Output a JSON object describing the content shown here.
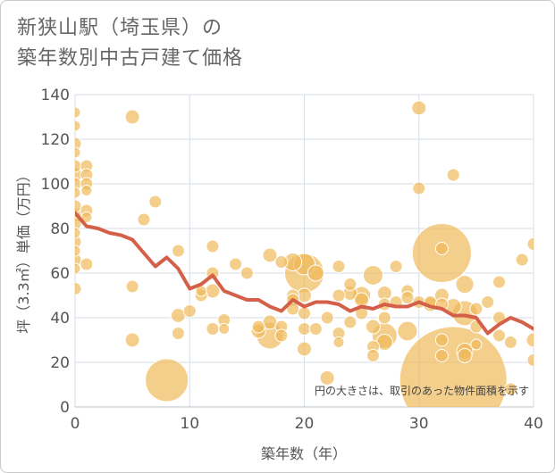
{
  "chart_data": {
    "type": "scatter",
    "title_lines": [
      "新狭山駅（埼玉県）の",
      "築年数別中古戸建て価格"
    ],
    "xlabel": "築年数（年）",
    "ylabel": "坪（3.3㎡）単価（万円）",
    "xlim": [
      0,
      40
    ],
    "ylim": [
      0,
      140
    ],
    "x_ticks": [
      0,
      10,
      20,
      30,
      40
    ],
    "y_ticks": [
      0,
      20,
      40,
      60,
      80,
      100,
      120,
      140
    ],
    "grid": true,
    "note": "円の大きさは、取引のあった物件面積を示す",
    "colors": {
      "bubble": "#f0b95a",
      "line": "#d4604a",
      "grid": "#d5dde6"
    },
    "points": [
      {
        "x": 0,
        "y": 132,
        "r": 6
      },
      {
        "x": 0,
        "y": 126,
        "r": 6
      },
      {
        "x": 0,
        "y": 118,
        "r": 7
      },
      {
        "x": 0,
        "y": 114,
        "r": 6
      },
      {
        "x": 0,
        "y": 108,
        "r": 7
      },
      {
        "x": 0,
        "y": 104,
        "r": 8
      },
      {
        "x": 0,
        "y": 100,
        "r": 7
      },
      {
        "x": 0,
        "y": 96,
        "r": 6
      },
      {
        "x": 0,
        "y": 90,
        "r": 7
      },
      {
        "x": 0,
        "y": 86,
        "r": 8
      },
      {
        "x": 0,
        "y": 82,
        "r": 7
      },
      {
        "x": 0,
        "y": 78,
        "r": 6
      },
      {
        "x": 0,
        "y": 74,
        "r": 7
      },
      {
        "x": 0,
        "y": 70,
        "r": 6
      },
      {
        "x": 0,
        "y": 66,
        "r": 7
      },
      {
        "x": 0,
        "y": 62,
        "r": 6
      },
      {
        "x": 0,
        "y": 53,
        "r": 7
      },
      {
        "x": 1,
        "y": 108,
        "r": 7
      },
      {
        "x": 1,
        "y": 104,
        "r": 7
      },
      {
        "x": 1,
        "y": 100,
        "r": 7
      },
      {
        "x": 1,
        "y": 97,
        "r": 6
      },
      {
        "x": 1,
        "y": 88,
        "r": 7
      },
      {
        "x": 1,
        "y": 85,
        "r": 6
      },
      {
        "x": 1,
        "y": 64,
        "r": 7
      },
      {
        "x": 5,
        "y": 130,
        "r": 8
      },
      {
        "x": 5,
        "y": 54,
        "r": 7
      },
      {
        "x": 5,
        "y": 30,
        "r": 8
      },
      {
        "x": 6,
        "y": 84,
        "r": 7
      },
      {
        "x": 7,
        "y": 92,
        "r": 7
      },
      {
        "x": 8,
        "y": 12,
        "r": 24
      },
      {
        "x": 9,
        "y": 70,
        "r": 7
      },
      {
        "x": 9,
        "y": 41,
        "r": 8
      },
      {
        "x": 9,
        "y": 33,
        "r": 7
      },
      {
        "x": 10,
        "y": 43,
        "r": 7
      },
      {
        "x": 11,
        "y": 50,
        "r": 7
      },
      {
        "x": 11,
        "y": 52,
        "r": 6
      },
      {
        "x": 12,
        "y": 72,
        "r": 7
      },
      {
        "x": 12,
        "y": 60,
        "r": 7
      },
      {
        "x": 12,
        "y": 52,
        "r": 8
      },
      {
        "x": 12,
        "y": 35,
        "r": 7
      },
      {
        "x": 13,
        "y": 39,
        "r": 7
      },
      {
        "x": 13,
        "y": 35,
        "r": 6
      },
      {
        "x": 14,
        "y": 64,
        "r": 7
      },
      {
        "x": 15,
        "y": 60,
        "r": 7
      },
      {
        "x": 16,
        "y": 36,
        "r": 7
      },
      {
        "x": 16,
        "y": 34,
        "r": 8
      },
      {
        "x": 17,
        "y": 68,
        "r": 8
      },
      {
        "x": 17,
        "y": 38,
        "r": 8
      },
      {
        "x": 17,
        "y": 32,
        "r": 15
      },
      {
        "x": 18,
        "y": 65,
        "r": 7
      },
      {
        "x": 18,
        "y": 36,
        "r": 7
      },
      {
        "x": 18,
        "y": 32,
        "r": 7
      },
      {
        "x": 19,
        "y": 65,
        "r": 10
      },
      {
        "x": 19,
        "y": 50,
        "r": 7
      },
      {
        "x": 19,
        "y": 48,
        "r": 7
      },
      {
        "x": 19,
        "y": 44,
        "r": 7
      },
      {
        "x": 20,
        "y": 64,
        "r": 12
      },
      {
        "x": 20,
        "y": 60,
        "r": 22
      },
      {
        "x": 20,
        "y": 50,
        "r": 8
      },
      {
        "x": 20,
        "y": 42,
        "r": 7
      },
      {
        "x": 20,
        "y": 35,
        "r": 7
      },
      {
        "x": 20,
        "y": 26,
        "r": 8
      },
      {
        "x": 21,
        "y": 60,
        "r": 9
      },
      {
        "x": 21,
        "y": 35,
        "r": 7
      },
      {
        "x": 22,
        "y": 40,
        "r": 7
      },
      {
        "x": 22,
        "y": 13,
        "r": 8
      },
      {
        "x": 23,
        "y": 63,
        "r": 7
      },
      {
        "x": 23,
        "y": 50,
        "r": 7
      },
      {
        "x": 23,
        "y": 33,
        "r": 7
      },
      {
        "x": 23,
        "y": 29,
        "r": 6
      },
      {
        "x": 24,
        "y": 55,
        "r": 7
      },
      {
        "x": 24,
        "y": 51,
        "r": 8
      },
      {
        "x": 24,
        "y": 38,
        "r": 7
      },
      {
        "x": 25,
        "y": 50,
        "r": 10
      },
      {
        "x": 25,
        "y": 48,
        "r": 8
      },
      {
        "x": 25,
        "y": 42,
        "r": 7
      },
      {
        "x": 26,
        "y": 59,
        "r": 11
      },
      {
        "x": 26,
        "y": 36,
        "r": 8
      },
      {
        "x": 26,
        "y": 27,
        "r": 7
      },
      {
        "x": 26,
        "y": 23,
        "r": 7
      },
      {
        "x": 27,
        "y": 51,
        "r": 8
      },
      {
        "x": 27,
        "y": 46,
        "r": 7
      },
      {
        "x": 27,
        "y": 40,
        "r": 7
      },
      {
        "x": 27,
        "y": 32,
        "r": 14
      },
      {
        "x": 27,
        "y": 29,
        "r": 9
      },
      {
        "x": 28,
        "y": 63,
        "r": 7
      },
      {
        "x": 28,
        "y": 47,
        "r": 7
      },
      {
        "x": 29,
        "y": 52,
        "r": 7
      },
      {
        "x": 29,
        "y": 49,
        "r": 7
      },
      {
        "x": 29,
        "y": 34,
        "r": 11
      },
      {
        "x": 30,
        "y": 134,
        "r": 8
      },
      {
        "x": 30,
        "y": 98,
        "r": 7
      },
      {
        "x": 30,
        "y": 47,
        "r": 7
      },
      {
        "x": 31,
        "y": 47,
        "r": 7
      },
      {
        "x": 31,
        "y": 46,
        "r": 8
      },
      {
        "x": 32,
        "y": 69,
        "r": 33
      },
      {
        "x": 32,
        "y": 71,
        "r": 7
      },
      {
        "x": 32,
        "y": 50,
        "r": 8
      },
      {
        "x": 32,
        "y": 46,
        "r": 7
      },
      {
        "x": 32,
        "y": 30,
        "r": 7
      },
      {
        "x": 32,
        "y": 23,
        "r": 7
      },
      {
        "x": 33,
        "y": 104,
        "r": 7
      },
      {
        "x": 33,
        "y": 45,
        "r": 9
      },
      {
        "x": 33,
        "y": 12,
        "r": 60
      },
      {
        "x": 34,
        "y": 55,
        "r": 10
      },
      {
        "x": 34,
        "y": 42,
        "r": 14
      },
      {
        "x": 34,
        "y": 25,
        "r": 9
      },
      {
        "x": 34,
        "y": 23,
        "r": 8
      },
      {
        "x": 35,
        "y": 44,
        "r": 7
      },
      {
        "x": 35,
        "y": 36,
        "r": 7
      },
      {
        "x": 35,
        "y": 28,
        "r": 6
      },
      {
        "x": 36,
        "y": 47,
        "r": 7
      },
      {
        "x": 37,
        "y": 56,
        "r": 7
      },
      {
        "x": 37,
        "y": 40,
        "r": 7
      },
      {
        "x": 37,
        "y": 32,
        "r": 7
      },
      {
        "x": 38,
        "y": 29,
        "r": 7
      },
      {
        "x": 38,
        "y": 8,
        "r": 7
      },
      {
        "x": 39,
        "y": 66,
        "r": 7
      },
      {
        "x": 40,
        "y": 73,
        "r": 7
      },
      {
        "x": 40,
        "y": 30,
        "r": 8
      },
      {
        "x": 40,
        "y": 21,
        "r": 7
      }
    ],
    "trend_line": {
      "x": [
        0,
        1,
        2,
        3,
        4,
        5,
        6,
        7,
        8,
        9,
        10,
        11,
        12,
        13,
        14,
        15,
        16,
        17,
        18,
        19,
        20,
        21,
        22,
        23,
        24,
        25,
        26,
        27,
        28,
        29,
        30,
        31,
        32,
        33,
        34,
        35,
        36,
        37,
        38,
        39,
        40
      ],
      "y": [
        87,
        81,
        80,
        78,
        77,
        75,
        69,
        63,
        67,
        62,
        53,
        55,
        59,
        52,
        50,
        48,
        48,
        45,
        43,
        48,
        45,
        47,
        47,
        46,
        43,
        45,
        44,
        46,
        45,
        45,
        47,
        45,
        44,
        41,
        41,
        40,
        33,
        37,
        40,
        38,
        35
      ]
    }
  }
}
